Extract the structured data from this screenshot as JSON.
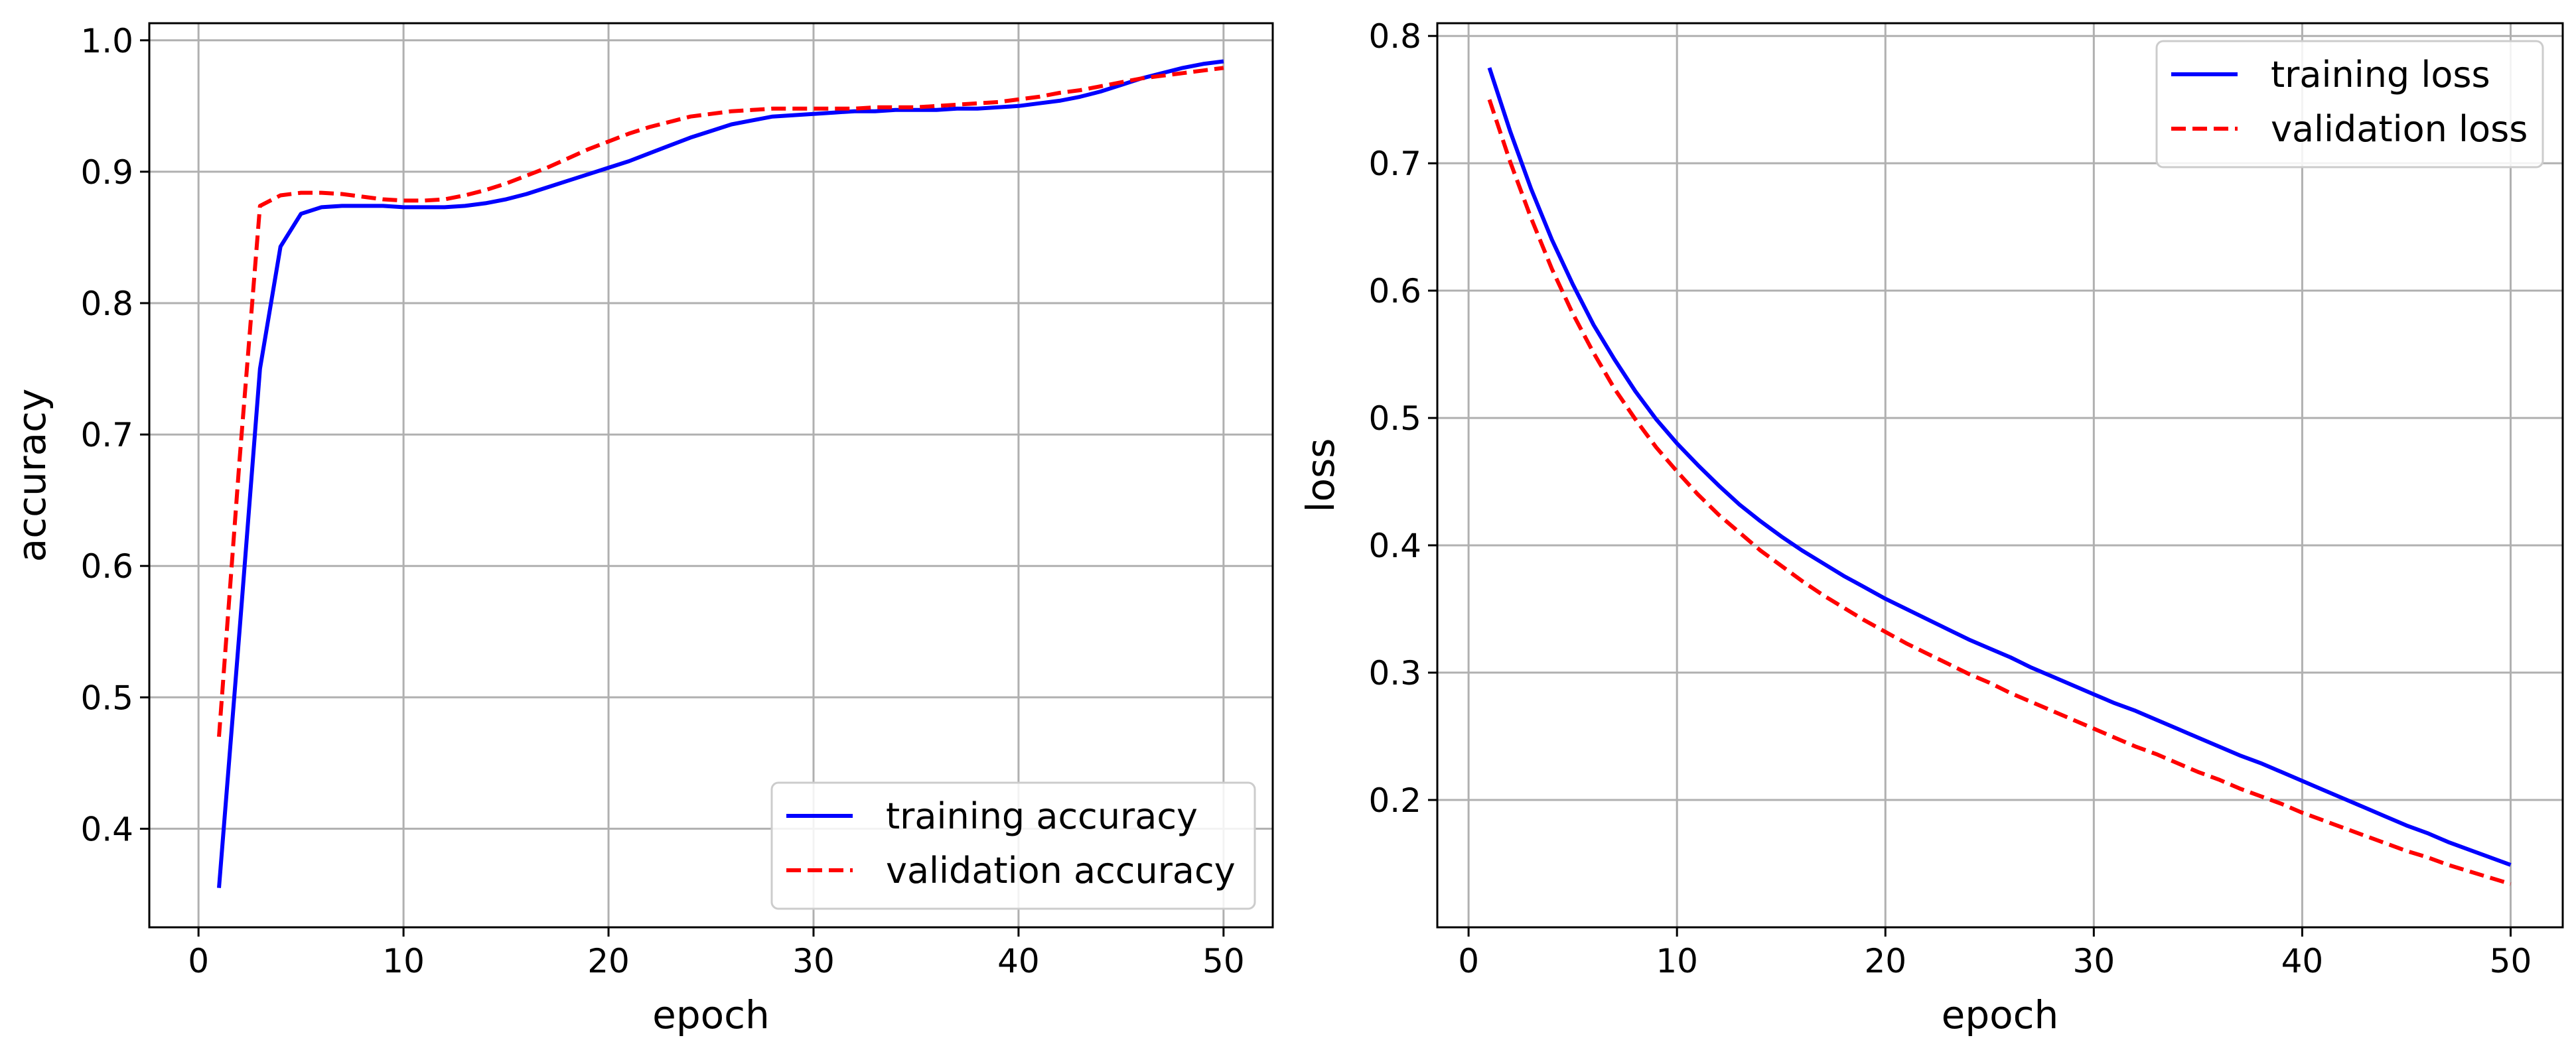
{
  "chart_data": [
    {
      "type": "line",
      "xlabel": "epoch",
      "ylabel": "accuracy",
      "xlim": [
        -2.4,
        52.4
      ],
      "ylim": [
        0.325,
        1.013
      ],
      "xticks": [
        0,
        10,
        20,
        30,
        40,
        50
      ],
      "yticks": [
        0.4,
        0.5,
        0.6,
        0.7,
        0.8,
        0.9,
        1.0
      ],
      "xtick_labels": [
        "0",
        "10",
        "20",
        "30",
        "40",
        "50"
      ],
      "ytick_labels": [
        "0.4",
        "0.5",
        "0.6",
        "0.7",
        "0.8",
        "0.9",
        "1.0"
      ],
      "grid": true,
      "legend_position": "bottom-right",
      "x": [
        1,
        2,
        3,
        4,
        5,
        6,
        7,
        8,
        9,
        10,
        11,
        12,
        13,
        14,
        15,
        16,
        17,
        18,
        19,
        20,
        21,
        22,
        23,
        24,
        25,
        26,
        27,
        28,
        29,
        30,
        31,
        32,
        33,
        34,
        35,
        36,
        37,
        38,
        39,
        40,
        41,
        42,
        43,
        44,
        45,
        46,
        47,
        48,
        49,
        50
      ],
      "series": [
        {
          "name": "training accuracy",
          "color": "#0000ff",
          "dash": "solid",
          "values": [
            0.355,
            0.55,
            0.75,
            0.843,
            0.868,
            0.873,
            0.874,
            0.874,
            0.874,
            0.873,
            0.873,
            0.873,
            0.874,
            0.876,
            0.879,
            0.883,
            0.888,
            0.893,
            0.898,
            0.903,
            0.908,
            0.914,
            0.92,
            0.926,
            0.931,
            0.936,
            0.939,
            0.942,
            0.943,
            0.944,
            0.945,
            0.946,
            0.946,
            0.947,
            0.947,
            0.947,
            0.948,
            0.948,
            0.949,
            0.95,
            0.952,
            0.954,
            0.957,
            0.961,
            0.966,
            0.971,
            0.975,
            0.979,
            0.982,
            0.984
          ]
        },
        {
          "name": "validation accuracy",
          "color": "#ff0000",
          "dash": "dashed",
          "values": [
            0.47,
            0.68,
            0.874,
            0.882,
            0.884,
            0.884,
            0.883,
            0.881,
            0.879,
            0.878,
            0.878,
            0.879,
            0.882,
            0.886,
            0.891,
            0.897,
            0.903,
            0.91,
            0.917,
            0.923,
            0.929,
            0.934,
            0.938,
            0.942,
            0.944,
            0.946,
            0.947,
            0.948,
            0.948,
            0.948,
            0.948,
            0.948,
            0.949,
            0.949,
            0.949,
            0.95,
            0.951,
            0.952,
            0.953,
            0.955,
            0.957,
            0.96,
            0.962,
            0.965,
            0.968,
            0.971,
            0.973,
            0.975,
            0.977,
            0.979
          ]
        }
      ]
    },
    {
      "type": "line",
      "xlabel": "epoch",
      "ylabel": "loss",
      "xlim": [
        -1.5,
        52.5
      ],
      "ylim": [
        0.1,
        0.81
      ],
      "xticks": [
        0,
        10,
        20,
        30,
        40,
        50
      ],
      "yticks": [
        0.2,
        0.3,
        0.4,
        0.5,
        0.6,
        0.7,
        0.8
      ],
      "xtick_labels": [
        "0",
        "10",
        "20",
        "30",
        "40",
        "50"
      ],
      "ytick_labels": [
        "0.2",
        "0.3",
        "0.4",
        "0.5",
        "0.6",
        "0.7",
        "0.8"
      ],
      "grid": true,
      "legend_position": "top-right",
      "x": [
        1,
        2,
        3,
        4,
        5,
        6,
        7,
        8,
        9,
        10,
        11,
        12,
        13,
        14,
        15,
        16,
        17,
        18,
        19,
        20,
        21,
        22,
        23,
        24,
        25,
        26,
        27,
        28,
        29,
        30,
        31,
        32,
        33,
        34,
        35,
        36,
        37,
        38,
        39,
        40,
        41,
        42,
        43,
        44,
        45,
        46,
        47,
        48,
        49,
        50
      ],
      "series": [
        {
          "name": "training loss",
          "color": "#0000ff",
          "dash": "solid",
          "values": [
            0.775,
            0.725,
            0.68,
            0.64,
            0.605,
            0.573,
            0.546,
            0.521,
            0.499,
            0.48,
            0.463,
            0.447,
            0.432,
            0.419,
            0.407,
            0.396,
            0.386,
            0.376,
            0.367,
            0.358,
            0.35,
            0.342,
            0.334,
            0.326,
            0.319,
            0.312,
            0.304,
            0.297,
            0.29,
            0.283,
            0.276,
            0.27,
            0.263,
            0.256,
            0.249,
            0.242,
            0.235,
            0.229,
            0.222,
            0.215,
            0.208,
            0.201,
            0.194,
            0.187,
            0.18,
            0.174,
            0.167,
            0.161,
            0.155,
            0.149
          ]
        },
        {
          "name": "validation loss",
          "color": "#ff0000",
          "dash": "dashed",
          "values": [
            0.75,
            0.701,
            0.657,
            0.617,
            0.582,
            0.551,
            0.523,
            0.499,
            0.477,
            0.458,
            0.44,
            0.424,
            0.41,
            0.396,
            0.384,
            0.372,
            0.361,
            0.351,
            0.341,
            0.332,
            0.323,
            0.315,
            0.307,
            0.299,
            0.292,
            0.284,
            0.277,
            0.27,
            0.263,
            0.256,
            0.249,
            0.242,
            0.236,
            0.229,
            0.222,
            0.216,
            0.209,
            0.203,
            0.197,
            0.19,
            0.184,
            0.178,
            0.172,
            0.166,
            0.16,
            0.155,
            0.149,
            0.144,
            0.139,
            0.134
          ]
        }
      ]
    }
  ]
}
